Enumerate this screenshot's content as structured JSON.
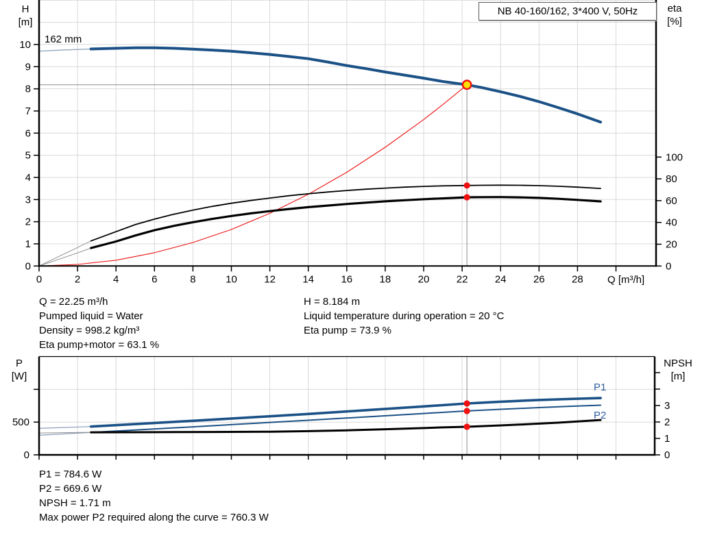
{
  "title_box": {
    "text": "NB 40-160/162, 3*400 V, 50Hz"
  },
  "labels": {
    "h_axis_line1": "H",
    "h_axis_line2": "[m]",
    "eta_axis_line1": "eta",
    "eta_axis_line2": "[%]",
    "p_axis_line1": "P",
    "p_axis_line2": "[W]",
    "npsh_axis_line1": "NPSH",
    "npsh_axis_line2": "[m]",
    "q_axis": "Q [m³/h]",
    "impeller": "162 mm",
    "p1": "P1",
    "p2": "P2"
  },
  "colors": {
    "curve_blue": "#1b5186",
    "label_blue": "#2c5f9d",
    "ext_blue": "#93a5bd",
    "ext_gray": "#8f8f8f",
    "red": "#ee1111",
    "marker_red": "#f01010",
    "duty_yellow": "#ffe106",
    "grid": "#d9d9d9",
    "crosshair": "#8c8c8c",
    "axis": "#000000"
  },
  "info_upper_left": [
    "Q = 22.25 m³/h",
    "Pumped liquid = Water",
    "Density = 998.2 kg/m³",
    "Eta pump+motor = 63.1 %"
  ],
  "info_upper_right": [
    "H = 8.184 m",
    "Liquid temperature during operation = 20 °C",
    "Eta pump = 73.9 %"
  ],
  "info_lower": [
    "P1 = 784.6 W",
    "P2 = 669.6 W",
    "NPSH = 1.71 m",
    "Max power P2 required along the curve = 760.3 W"
  ],
  "chart_data": [
    {
      "type": "line",
      "name": "head-and-efficiency-vs-flow",
      "xlabel": "Q [m³/h]",
      "ylabel_left": "H [m]",
      "ylabel_right": "eta [%]",
      "x_range": [
        0,
        32
      ],
      "y_left_range": [
        0,
        12
      ],
      "y_right_ticks_span": [
        0,
        100
      ],
      "grid": true,
      "x_ticks_labeled": [
        0,
        2,
        4,
        6,
        8,
        10,
        12,
        14,
        16,
        18,
        20,
        22,
        24,
        26,
        28
      ],
      "x_ticks_unlabeled": [
        30
      ],
      "y_left_ticks": [
        0,
        1,
        2,
        3,
        4,
        5,
        6,
        7,
        8,
        9,
        10
      ],
      "y_right_ticks": [
        0,
        20,
        40,
        60,
        80,
        100
      ],
      "grid_x": [
        2,
        4,
        6,
        8,
        10,
        12,
        14,
        16,
        18,
        20,
        22,
        24,
        26,
        28,
        30
      ],
      "grid_y_left": [
        1,
        2,
        3,
        4,
        5,
        6,
        7,
        8,
        9,
        10,
        11,
        12
      ],
      "series": [
        {
          "name": "head-curve-extrapolation",
          "axis": "left",
          "style": "head_ext",
          "points": [
            [
              0,
              9.7
            ],
            [
              1.4,
              9.76
            ],
            [
              2.7,
              9.8
            ]
          ]
        },
        {
          "name": "eta-pump-extrapolation",
          "axis": "right",
          "style": "ext_gray",
          "points": [
            [
              0,
              0
            ],
            [
              1,
              8.5
            ],
            [
              2,
              17
            ],
            [
              2.7,
              23
            ]
          ]
        },
        {
          "name": "eta-pump-motor-extrapolation",
          "axis": "right",
          "style": "ext_gray",
          "points": [
            [
              0,
              0
            ],
            [
              1,
              6
            ],
            [
              2,
              12
            ],
            [
              2.7,
              16.5
            ]
          ]
        },
        {
          "name": "system-curve",
          "axis": "left",
          "style": "system",
          "points": [
            [
              0,
              0
            ],
            [
              2,
              0.07
            ],
            [
              4,
              0.26
            ],
            [
              6,
              0.6
            ],
            [
              8,
              1.06
            ],
            [
              10,
              1.65
            ],
            [
              12,
              2.38
            ],
            [
              14,
              3.24
            ],
            [
              16,
              4.23
            ],
            [
              18,
              5.36
            ],
            [
              20,
              6.61
            ],
            [
              21,
              7.29
            ],
            [
              22,
              8.0
            ],
            [
              22.25,
              8.18
            ]
          ]
        },
        {
          "name": "eta-pump-curve",
          "axis": "right",
          "style": "eta_pump",
          "points": [
            [
              2.7,
              23
            ],
            [
              4,
              31.5
            ],
            [
              5,
              38
            ],
            [
              6,
              43
            ],
            [
              7,
              47.5
            ],
            [
              8,
              51.3
            ],
            [
              9,
              54.7
            ],
            [
              10,
              57.6
            ],
            [
              11,
              60.1
            ],
            [
              12,
              62.4
            ],
            [
              13,
              64.5
            ],
            [
              14,
              66.3
            ],
            [
              15,
              67.9
            ],
            [
              16,
              69.3
            ],
            [
              17,
              70.5
            ],
            [
              18,
              71.5
            ],
            [
              19,
              72.4
            ],
            [
              20,
              73.1
            ],
            [
              21,
              73.6
            ],
            [
              22.25,
              73.9
            ],
            [
              23,
              74.1
            ],
            [
              24,
              74.2
            ],
            [
              25,
              74.1
            ],
            [
              26,
              73.8
            ],
            [
              27,
              73.2
            ],
            [
              28,
              72.4
            ],
            [
              29.2,
              71.2
            ]
          ]
        },
        {
          "name": "eta-pump-motor-curve",
          "axis": "right",
          "style": "eta_pm",
          "points": [
            [
              2.7,
              16.5
            ],
            [
              4,
              22.5
            ],
            [
              5,
              28
            ],
            [
              6,
              32.8
            ],
            [
              7,
              36.8
            ],
            [
              8,
              40.2
            ],
            [
              9,
              43.2
            ],
            [
              10,
              45.9
            ],
            [
              11,
              48.3
            ],
            [
              12,
              50.4
            ],
            [
              13,
              52.3
            ],
            [
              14,
              54.0
            ],
            [
              15,
              55.5
            ],
            [
              16,
              56.9
            ],
            [
              17,
              58.2
            ],
            [
              18,
              59.4
            ],
            [
              19,
              60.4
            ],
            [
              20,
              61.3
            ],
            [
              21,
              62.1
            ],
            [
              22.25,
              63.1
            ],
            [
              23,
              63.2
            ],
            [
              24,
              63.3
            ],
            [
              25,
              63.0
            ],
            [
              26,
              62.5
            ],
            [
              27,
              61.7
            ],
            [
              28,
              60.7
            ],
            [
              29.2,
              59.3
            ]
          ]
        },
        {
          "name": "head-curve-162mm",
          "axis": "left",
          "style": "head",
          "points": [
            [
              2.7,
              9.8
            ],
            [
              4,
              9.83
            ],
            [
              5,
              9.85
            ],
            [
              6,
              9.85
            ],
            [
              7,
              9.83
            ],
            [
              8,
              9.79
            ],
            [
              9,
              9.75
            ],
            [
              10,
              9.7
            ],
            [
              11,
              9.63
            ],
            [
              12,
              9.55
            ],
            [
              13,
              9.46
            ],
            [
              14,
              9.36
            ],
            [
              15,
              9.21
            ],
            [
              16,
              9.05
            ],
            [
              17,
              8.91
            ],
            [
              18,
              8.76
            ],
            [
              19,
              8.62
            ],
            [
              20,
              8.48
            ],
            [
              21,
              8.33
            ],
            [
              22.25,
              8.18
            ],
            [
              23,
              8.06
            ],
            [
              24,
              7.87
            ],
            [
              25,
              7.66
            ],
            [
              26,
              7.42
            ],
            [
              27,
              7.15
            ],
            [
              28,
              6.87
            ],
            [
              29.2,
              6.5
            ]
          ]
        }
      ],
      "crosshair": {
        "q": 22.25,
        "value": 8.184
      },
      "duty_point": {
        "q": 22.25,
        "h": 8.184
      },
      "markers": [
        {
          "name": "eta-pump-point",
          "q": 22.25,
          "value": 73.9,
          "axis": "right"
        },
        {
          "name": "eta-pump-motor-point",
          "q": 22.25,
          "value": 63.1,
          "axis": "right"
        }
      ]
    },
    {
      "type": "line",
      "name": "power-and-npsh-vs-flow",
      "xlabel": "",
      "ylabel_left": "P [W]",
      "ylabel_right": "NPSH [m]",
      "x_range": [
        0,
        32
      ],
      "y_left_range": [
        0,
        1500
      ],
      "y_right_range": [
        0,
        6
      ],
      "grid": true,
      "x_ticks_unlabeled": [
        0,
        2,
        4,
        6,
        8,
        10,
        12,
        14,
        16,
        18,
        20,
        22,
        24,
        26,
        28,
        30
      ],
      "y_left_ticks_labeled": [
        0,
        500
      ],
      "y_left_ticks_unlabeled": [
        1000
      ],
      "y_right_ticks_labeled": [
        0,
        1,
        2,
        3
      ],
      "y_right_ticks_unlabeled": [
        4,
        5
      ],
      "grid_x": [
        2,
        4,
        6,
        8,
        10,
        12,
        14,
        16,
        18,
        20,
        22,
        24,
        26,
        28,
        30
      ],
      "grid_y_left": [
        500,
        1000
      ],
      "series": [
        {
          "name": "p1-extrapolation",
          "axis": "left",
          "style": "head_ext",
          "points": [
            [
              0,
              405
            ],
            [
              2.7,
              432
            ]
          ]
        },
        {
          "name": "p2-extrapolation",
          "axis": "left",
          "style": "head_ext",
          "points": [
            [
              0,
              300
            ],
            [
              2.7,
              342
            ]
          ]
        },
        {
          "name": "npsh-extrapolation",
          "axis": "right",
          "style": "ext_gray",
          "points": [
            [
              0,
              1.33
            ],
            [
              2.7,
              1.37
            ]
          ]
        },
        {
          "name": "p2-curve",
          "axis": "left",
          "style": "p2",
          "points": [
            [
              2.7,
              342
            ],
            [
              5,
              380
            ],
            [
              8,
              428
            ],
            [
              11,
              478
            ],
            [
              14,
              528
            ],
            [
              17,
              580
            ],
            [
              20,
              632
            ],
            [
              22.25,
              670
            ],
            [
              24,
              696
            ],
            [
              26,
              722
            ],
            [
              27.5,
              741
            ],
            [
              29.2,
              758
            ]
          ]
        },
        {
          "name": "p1-curve",
          "axis": "left",
          "style": "p1",
          "points": [
            [
              2.7,
              432
            ],
            [
              5,
              470
            ],
            [
              8,
              520
            ],
            [
              11,
              572
            ],
            [
              14,
              625
            ],
            [
              17,
              682
            ],
            [
              20,
              740
            ],
            [
              22.25,
              785
            ],
            [
              24,
              812
            ],
            [
              26,
              838
            ],
            [
              27.5,
              853
            ],
            [
              29.2,
              867
            ]
          ]
        },
        {
          "name": "npsh-curve",
          "axis": "right",
          "style": "npsh",
          "points": [
            [
              2.7,
              1.37
            ],
            [
              6,
              1.38
            ],
            [
              9,
              1.39
            ],
            [
              12,
              1.41
            ],
            [
              14,
              1.44
            ],
            [
              16,
              1.49
            ],
            [
              18,
              1.56
            ],
            [
              20,
              1.63
            ],
            [
              21,
              1.67
            ],
            [
              22.25,
              1.71
            ],
            [
              24,
              1.79
            ],
            [
              25,
              1.84
            ],
            [
              26,
              1.9
            ],
            [
              27,
              1.96
            ],
            [
              28,
              2.03
            ],
            [
              29.2,
              2.12
            ]
          ]
        }
      ],
      "crosshair_q": 22.25,
      "markers": [
        {
          "name": "p1-point",
          "q": 22.25,
          "value": 784.6,
          "axis": "left"
        },
        {
          "name": "p2-point",
          "q": 22.25,
          "value": 669.6,
          "axis": "left"
        },
        {
          "name": "npsh-point",
          "q": 22.25,
          "value": 1.71,
          "axis": "right"
        }
      ]
    }
  ]
}
